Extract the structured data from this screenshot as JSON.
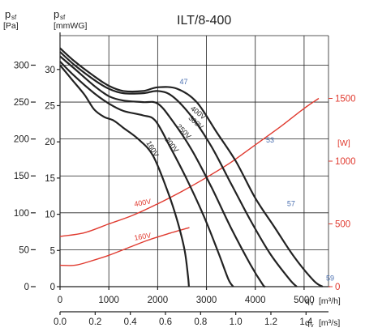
{
  "chart_data": {
    "type": "line",
    "title": "ILT/8-400",
    "axes": {
      "left_outer": {
        "symbol": "p",
        "subscript": "sf",
        "unit": "[Pa]",
        "ticks": [
          "0",
          "50",
          "100",
          "150",
          "200",
          "250",
          "300"
        ],
        "range": [
          0,
          340
        ]
      },
      "left_inner": {
        "symbol": "p",
        "subscript": "sf",
        "unit": "[mmWG]",
        "ticks": [
          "0",
          "5",
          "10",
          "15",
          "20",
          "25",
          "30"
        ]
      },
      "right_power": {
        "unit": "[W]",
        "ticks": [
          "0",
          "500",
          "1000",
          "1500"
        ],
        "range": [
          0,
          2000
        ],
        "color": "#e03a2f"
      },
      "x_primary": {
        "symbol": "q",
        "subscript": "v",
        "unit": "[m³/h]",
        "ticks": [
          "0",
          "1000",
          "2000",
          "3000",
          "4000",
          "5000"
        ],
        "range": [
          0,
          5500
        ]
      },
      "x_secondary": {
        "symbol": "q",
        "subscript": "v",
        "unit": "[m³/s]",
        "ticks": [
          "0.0",
          "0.2",
          "0.4",
          "0.6",
          "0.8",
          "1.0",
          "1.2",
          "1.4"
        ]
      }
    },
    "series": [
      {
        "name": "400V",
        "color": "#222222",
        "label_pos": [
          2800,
          233
        ],
        "points": [
          [
            0,
            323
          ],
          [
            300,
            305
          ],
          [
            700,
            285
          ],
          [
            1000,
            272
          ],
          [
            1300,
            265
          ],
          [
            1700,
            265
          ],
          [
            2000,
            270
          ],
          [
            2400,
            268
          ],
          [
            2800,
            250
          ],
          [
            3200,
            210
          ],
          [
            3600,
            170
          ],
          [
            4000,
            120
          ],
          [
            4400,
            80
          ],
          [
            4800,
            40
          ],
          [
            5200,
            8
          ],
          [
            5380,
            0
          ]
        ]
      },
      {
        "name": "300V",
        "color": "#222222",
        "label_pos": [
          2750,
          220
        ],
        "points": [
          [
            0,
            318
          ],
          [
            300,
            300
          ],
          [
            700,
            280
          ],
          [
            1000,
            268
          ],
          [
            1300,
            262
          ],
          [
            1700,
            262
          ],
          [
            2000,
            265
          ],
          [
            2300,
            258
          ],
          [
            2700,
            230
          ],
          [
            3100,
            190
          ],
          [
            3500,
            140
          ],
          [
            3900,
            90
          ],
          [
            4300,
            45
          ],
          [
            4700,
            10
          ],
          [
            4850,
            0
          ]
        ]
      },
      {
        "name": "250V",
        "color": "#222222",
        "label_pos": [
          2500,
          208
        ],
        "points": [
          [
            0,
            312
          ],
          [
            300,
            295
          ],
          [
            700,
            272
          ],
          [
            1000,
            258
          ],
          [
            1300,
            252
          ],
          [
            1700,
            250
          ],
          [
            2000,
            248
          ],
          [
            2300,
            225
          ],
          [
            2700,
            185
          ],
          [
            3100,
            135
          ],
          [
            3500,
            80
          ],
          [
            3900,
            30
          ],
          [
            4150,
            3
          ],
          [
            4200,
            0
          ]
        ]
      },
      {
        "name": "200V",
        "color": "#222222",
        "label_pos": [
          2250,
          190
        ],
        "points": [
          [
            0,
            305
          ],
          [
            300,
            285
          ],
          [
            700,
            262
          ],
          [
            1000,
            248
          ],
          [
            1300,
            238
          ],
          [
            1700,
            232
          ],
          [
            1950,
            225
          ],
          [
            2250,
            190
          ],
          [
            2600,
            145
          ],
          [
            2950,
            95
          ],
          [
            3250,
            45
          ],
          [
            3450,
            10
          ],
          [
            3550,
            0
          ]
        ]
      },
      {
        "name": "160V",
        "color": "#222222",
        "label_pos": [
          1850,
          185
        ],
        "points": [
          [
            0,
            300
          ],
          [
            250,
            280
          ],
          [
            500,
            260
          ],
          [
            700,
            240
          ],
          [
            900,
            230
          ],
          [
            1100,
            225
          ],
          [
            1300,
            215
          ],
          [
            1600,
            200
          ],
          [
            1900,
            178
          ],
          [
            2200,
            130
          ],
          [
            2400,
            90
          ],
          [
            2550,
            50
          ],
          [
            2620,
            15
          ],
          [
            2640,
            0
          ]
        ]
      }
    ],
    "power_series": [
      {
        "name": "400V",
        "unit": "W",
        "color": "#e03a2f",
        "label_pos": [
          1700,
          650
        ],
        "points": [
          [
            0,
            400
          ],
          [
            500,
            430
          ],
          [
            1000,
            500
          ],
          [
            1500,
            570
          ],
          [
            2000,
            660
          ],
          [
            2500,
            760
          ],
          [
            3000,
            870
          ],
          [
            3500,
            990
          ],
          [
            4000,
            1130
          ],
          [
            4500,
            1270
          ],
          [
            5000,
            1420
          ],
          [
            5300,
            1500
          ]
        ]
      },
      {
        "name": "160V",
        "unit": "W",
        "color": "#e03a2f",
        "label_pos": [
          1700,
          380
        ],
        "points": [
          [
            0,
            170
          ],
          [
            300,
            170
          ],
          [
            600,
            200
          ],
          [
            1000,
            250
          ],
          [
            1400,
            310
          ],
          [
            1800,
            370
          ],
          [
            2200,
            420
          ],
          [
            2650,
            470
          ]
        ]
      }
    ],
    "annotations": [
      {
        "text": "47",
        "x": 2450,
        "y": 274,
        "color": "#4a6fb0"
      },
      {
        "text": "53",
        "x": 4220,
        "y": 195,
        "color": "#4a6fb0"
      },
      {
        "text": "57",
        "x": 4650,
        "y": 109,
        "color": "#4a6fb0"
      },
      {
        "text": "59",
        "x": 5450,
        "y": 8,
        "color": "#4a6fb0"
      }
    ],
    "grid": true
  }
}
